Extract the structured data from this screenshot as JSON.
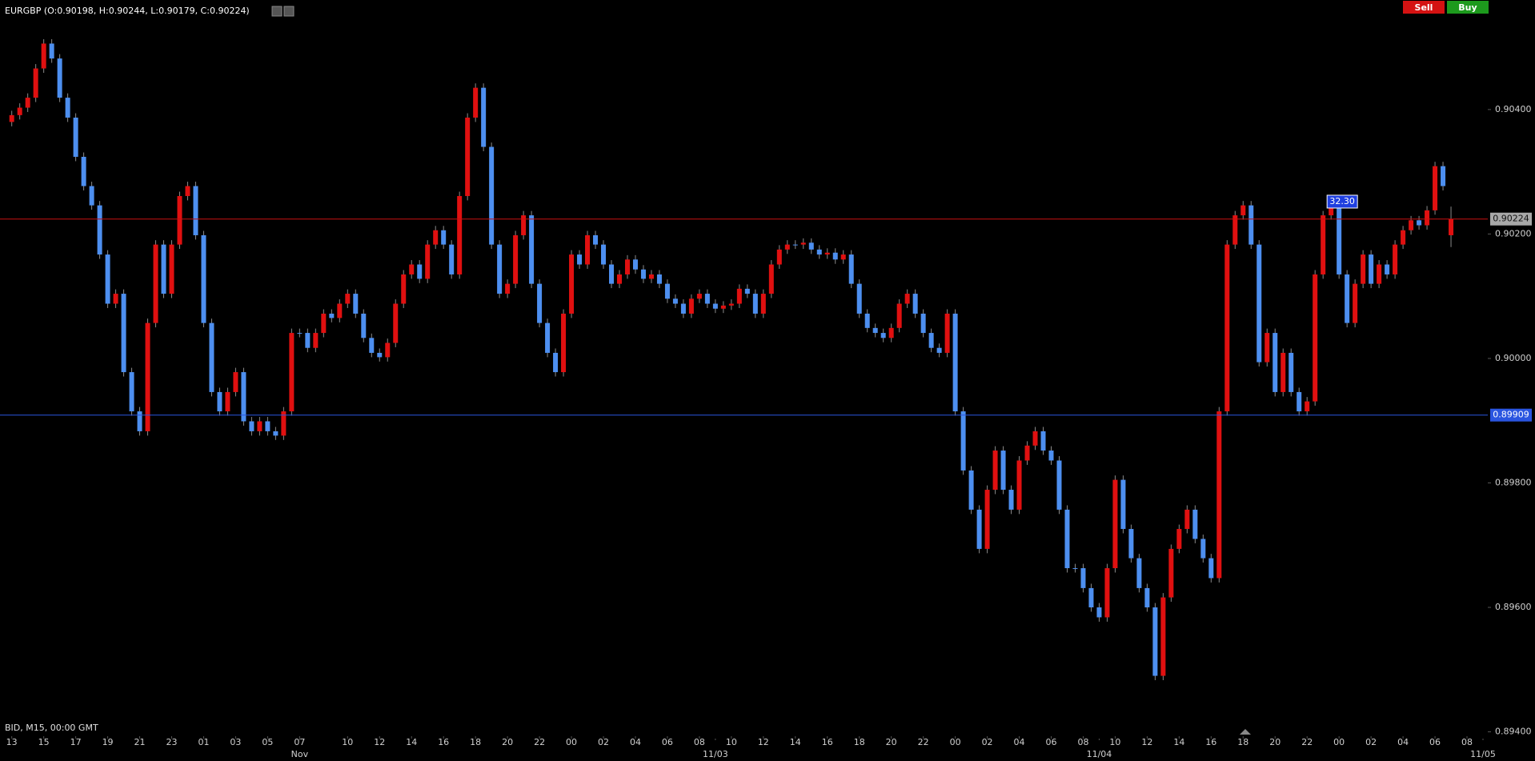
{
  "chart_data": {
    "type": "candlestick",
    "title": "EURGBP (O:0.90198, H:0.90244, L:0.90179, C:0.90224)",
    "subtitle": "BID, M15, 00:00 GMT",
    "buttons": [
      "Sell",
      "Buy"
    ],
    "up_color": "#e01010",
    "down_color": "#4d8ff0",
    "wick_color": "#8a8a8a",
    "xlim": [
      -1.47,
      184.6
    ],
    "ylim": [
      0.89393,
      0.90576
    ],
    "yticks": [
      {
        "value": 0.904,
        "label": "0.90400"
      },
      {
        "value": 0.902,
        "label": "0.90200"
      },
      {
        "value": 0.9,
        "label": "0.90000"
      },
      {
        "value": 0.898,
        "label": "0.89800"
      },
      {
        "value": 0.896,
        "label": "0.89600"
      },
      {
        "value": 0.894,
        "label": "0.89400"
      }
    ],
    "xticks": [
      {
        "value": 0,
        "label": "13"
      },
      {
        "value": 4,
        "label": "15"
      },
      {
        "value": 8,
        "label": "17"
      },
      {
        "value": 12,
        "label": "19"
      },
      {
        "value": 16,
        "label": "21"
      },
      {
        "value": 20,
        "label": "23"
      },
      {
        "value": 24,
        "label": "01"
      },
      {
        "value": 28,
        "label": "03"
      },
      {
        "value": 32,
        "label": "05"
      },
      {
        "value": 36,
        "label": "07"
      },
      {
        "value": 42,
        "label": "10"
      },
      {
        "value": 46,
        "label": "12"
      },
      {
        "value": 50,
        "label": "14"
      },
      {
        "value": 54,
        "label": "16"
      },
      {
        "value": 58,
        "label": "18"
      },
      {
        "value": 62,
        "label": "20"
      },
      {
        "value": 66,
        "label": "22"
      },
      {
        "value": 70,
        "label": "00"
      },
      {
        "value": 74,
        "label": "02"
      },
      {
        "value": 78,
        "label": "04"
      },
      {
        "value": 82,
        "label": "06"
      },
      {
        "value": 86,
        "label": "08"
      },
      {
        "value": 90,
        "label": "10"
      },
      {
        "value": 94,
        "label": "12"
      },
      {
        "value": 98,
        "label": "14"
      },
      {
        "value": 102,
        "label": "16"
      },
      {
        "value": 106,
        "label": "18"
      },
      {
        "value": 110,
        "label": "20"
      },
      {
        "value": 114,
        "label": "22"
      },
      {
        "value": 118,
        "label": "00"
      },
      {
        "value": 122,
        "label": "02"
      },
      {
        "value": 126,
        "label": "04"
      },
      {
        "value": 130,
        "label": "06"
      },
      {
        "value": 134,
        "label": "08"
      },
      {
        "value": 138,
        "label": "10"
      },
      {
        "value": 142,
        "label": "12"
      },
      {
        "value": 146,
        "label": "14"
      },
      {
        "value": 150,
        "label": "16"
      },
      {
        "value": 154,
        "label": "18"
      },
      {
        "value": 158,
        "label": "20"
      },
      {
        "value": 162,
        "label": "22"
      },
      {
        "value": 166,
        "label": "00"
      },
      {
        "value": 170,
        "label": "02"
      },
      {
        "value": 174,
        "label": "04"
      },
      {
        "value": 178,
        "label": "06"
      },
      {
        "value": 182,
        "label": "08"
      }
    ],
    "xdates": [
      {
        "value": 36,
        "label": "Nov"
      },
      {
        "value": 88,
        "label": "11/03"
      },
      {
        "value": 136,
        "label": "11/04"
      },
      {
        "value": 184,
        "label": "11/05"
      }
    ],
    "open": [
      0.9038,
      0.90391,
      0.90403,
      0.90419,
      0.90466,
      0.90506,
      0.90482,
      0.90419,
      0.90387,
      0.90324,
      0.90277,
      0.90246,
      0.90167,
      0.90088,
      0.90104,
      0.89978,
      0.89915,
      0.89883,
      0.90057,
      0.90183,
      0.90104,
      0.90183,
      0.90261,
      0.90277,
      0.90198,
      0.90057,
      0.89946,
      0.89915,
      0.89946,
      0.89978,
      0.89899,
      0.89883,
      0.89899,
      0.89883,
      0.89876,
      0.89915,
      0.90041,
      0.90041,
      0.90017,
      0.90041,
      0.90072,
      0.90065,
      0.90088,
      0.90104,
      0.90072,
      0.90033,
      0.90009,
      0.90002,
      0.90025,
      0.90088,
      0.90135,
      0.90151,
      0.90128,
      0.90183,
      0.90206,
      0.90183,
      0.90135,
      0.90261,
      0.90387,
      0.90435,
      0.9034,
      0.90183,
      0.90104,
      0.9012,
      0.90198,
      0.9023,
      0.9012,
      0.90057,
      0.90009,
      0.89978,
      0.90072,
      0.90167,
      0.90151,
      0.90198,
      0.90183,
      0.90151,
      0.9012,
      0.90135,
      0.90159,
      0.90143,
      0.90128,
      0.90135,
      0.9012,
      0.90096,
      0.90088,
      0.90072,
      0.90096,
      0.90104,
      0.90088,
      0.9008,
      0.90085,
      0.90088,
      0.90112,
      0.90104,
      0.90072,
      0.90104,
      0.90151,
      0.90175,
      0.90183,
      0.90183,
      0.90186,
      0.90175,
      0.90167,
      0.9017,
      0.90159,
      0.90167,
      0.9012,
      0.90072,
      0.90049,
      0.90041,
      0.90033,
      0.90049,
      0.90088,
      0.90104,
      0.90072,
      0.90041,
      0.90017,
      0.90009,
      0.90072,
      0.89915,
      0.8982,
      0.89757,
      0.89694,
      0.89789,
      0.89852,
      0.89789,
      0.89757,
      0.89836,
      0.8986,
      0.89883,
      0.89852,
      0.89836,
      0.89757,
      0.89663,
      0.89663,
      0.89631,
      0.896,
      0.89584,
      0.89663,
      0.89805,
      0.89726,
      0.89679,
      0.89631,
      0.896,
      0.8949,
      0.89616,
      0.89694,
      0.89726,
      0.89757,
      0.8971,
      0.89679,
      0.89647,
      0.89915,
      0.90183,
      0.9023,
      0.90246,
      0.90183,
      0.89994,
      0.90041,
      0.89946,
      0.90009,
      0.89946,
      0.89915,
      0.89931,
      0.90135,
      0.9023,
      0.90246,
      0.90135,
      0.90057,
      0.9012,
      0.90167,
      0.9012,
      0.90151,
      0.90135,
      0.90183,
      0.90206,
      0.90222,
      0.90214,
      0.90238,
      0.90309,
      0.90198
    ],
    "high": [
      0.90398,
      0.9041,
      0.90426,
      0.90473,
      0.90513,
      0.90513,
      0.90489,
      0.90426,
      0.90394,
      0.90331,
      0.90284,
      0.90253,
      0.90174,
      0.90111,
      0.90111,
      0.89985,
      0.89922,
      0.90064,
      0.9019,
      0.9019,
      0.9019,
      0.90268,
      0.90284,
      0.90284,
      0.90205,
      0.90064,
      0.89953,
      0.89953,
      0.89985,
      0.89985,
      0.89906,
      0.89906,
      0.89906,
      0.8989,
      0.89922,
      0.90048,
      0.90048,
      0.90048,
      0.90048,
      0.90079,
      0.90079,
      0.90095,
      0.90111,
      0.90111,
      0.90079,
      0.9004,
      0.90016,
      0.90032,
      0.90095,
      0.90142,
      0.90158,
      0.90158,
      0.9019,
      0.90213,
      0.90213,
      0.9019,
      0.90268,
      0.90394,
      0.90442,
      0.90442,
      0.90347,
      0.9019,
      0.90127,
      0.90205,
      0.90237,
      0.90237,
      0.90127,
      0.90064,
      0.90016,
      0.90079,
      0.90174,
      0.90174,
      0.90205,
      0.90205,
      0.9019,
      0.90158,
      0.90142,
      0.90166,
      0.90166,
      0.9015,
      0.90142,
      0.90142,
      0.90127,
      0.90103,
      0.90095,
      0.90103,
      0.90111,
      0.90111,
      0.90095,
      0.90092,
      0.90095,
      0.90119,
      0.90119,
      0.90111,
      0.90111,
      0.90158,
      0.90182,
      0.9019,
      0.9019,
      0.90193,
      0.90193,
      0.90182,
      0.90177,
      0.90177,
      0.90174,
      0.90174,
      0.90127,
      0.90079,
      0.90056,
      0.90048,
      0.90056,
      0.90095,
      0.90111,
      0.90111,
      0.90079,
      0.90048,
      0.90024,
      0.90079,
      0.90079,
      0.89922,
      0.89827,
      0.89764,
      0.89796,
      0.89859,
      0.89859,
      0.89796,
      0.89843,
      0.89867,
      0.8989,
      0.8989,
      0.89859,
      0.89843,
      0.89764,
      0.8967,
      0.8967,
      0.89638,
      0.89607,
      0.8967,
      0.89812,
      0.89812,
      0.89733,
      0.89686,
      0.89638,
      0.89607,
      0.89623,
      0.89701,
      0.89733,
      0.89764,
      0.89764,
      0.89717,
      0.89686,
      0.89922,
      0.9019,
      0.90237,
      0.90253,
      0.90253,
      0.9019,
      0.90048,
      0.90048,
      0.90016,
      0.90016,
      0.89953,
      0.89938,
      0.90142,
      0.90237,
      0.90253,
      0.90253,
      0.90142,
      0.90127,
      0.90174,
      0.90174,
      0.90158,
      0.90158,
      0.9019,
      0.90213,
      0.90229,
      0.90229,
      0.90245,
      0.90316,
      0.90316,
      0.90244
    ],
    "low": [
      0.90373,
      0.90384,
      0.90396,
      0.90412,
      0.90459,
      0.90475,
      0.90412,
      0.9038,
      0.90317,
      0.9027,
      0.90239,
      0.9016,
      0.90081,
      0.90081,
      0.89971,
      0.89908,
      0.89876,
      0.89876,
      0.9005,
      0.90097,
      0.90097,
      0.90176,
      0.90254,
      0.90191,
      0.9005,
      0.89939,
      0.89908,
      0.89908,
      0.89939,
      0.89892,
      0.89876,
      0.89876,
      0.89876,
      0.89869,
      0.89869,
      0.89908,
      0.90034,
      0.9001,
      0.9001,
      0.90034,
      0.90058,
      0.90058,
      0.90081,
      0.90065,
      0.90026,
      0.90002,
      0.89995,
      0.89995,
      0.90018,
      0.90081,
      0.90128,
      0.90121,
      0.90121,
      0.90176,
      0.90176,
      0.90128,
      0.90128,
      0.90254,
      0.9038,
      0.90333,
      0.90176,
      0.90097,
      0.90097,
      0.90113,
      0.90191,
      0.90113,
      0.9005,
      0.90002,
      0.89971,
      0.89971,
      0.90065,
      0.90144,
      0.90144,
      0.90176,
      0.90144,
      0.90113,
      0.90113,
      0.90128,
      0.90136,
      0.90121,
      0.90121,
      0.90113,
      0.90089,
      0.90081,
      0.90065,
      0.90065,
      0.90089,
      0.90081,
      0.90073,
      0.90073,
      0.90078,
      0.90081,
      0.90097,
      0.90065,
      0.90065,
      0.90097,
      0.90144,
      0.90168,
      0.90176,
      0.90176,
      0.90168,
      0.9016,
      0.9016,
      0.90152,
      0.90152,
      0.90113,
      0.90065,
      0.90042,
      0.90034,
      0.90026,
      0.90026,
      0.90042,
      0.90081,
      0.90065,
      0.90034,
      0.9001,
      0.90002,
      0.90002,
      0.89908,
      0.89813,
      0.8975,
      0.89687,
      0.89687,
      0.89782,
      0.89782,
      0.8975,
      0.8975,
      0.89829,
      0.89853,
      0.89845,
      0.89829,
      0.8975,
      0.89656,
      0.89656,
      0.89624,
      0.89593,
      0.89577,
      0.89577,
      0.89656,
      0.89719,
      0.89672,
      0.89624,
      0.89593,
      0.89483,
      0.89483,
      0.89609,
      0.89687,
      0.89719,
      0.89703,
      0.89672,
      0.8964,
      0.8964,
      0.89908,
      0.90176,
      0.90223,
      0.90176,
      0.89987,
      0.89987,
      0.89939,
      0.89939,
      0.89939,
      0.89908,
      0.89908,
      0.89924,
      0.90128,
      0.90223,
      0.90128,
      0.9005,
      0.9005,
      0.90113,
      0.90113,
      0.90113,
      0.90128,
      0.90128,
      0.90176,
      0.90199,
      0.90207,
      0.90207,
      0.90231,
      0.9027,
      0.90179
    ],
    "close": [
      0.90391,
      0.90403,
      0.90419,
      0.90466,
      0.90506,
      0.90482,
      0.90419,
      0.90387,
      0.90324,
      0.90277,
      0.90246,
      0.90167,
      0.90088,
      0.90104,
      0.89978,
      0.89915,
      0.89883,
      0.90057,
      0.90183,
      0.90104,
      0.90183,
      0.90261,
      0.90277,
      0.90198,
      0.90057,
      0.89946,
      0.89915,
      0.89946,
      0.89978,
      0.89899,
      0.89883,
      0.89899,
      0.89883,
      0.89876,
      0.89915,
      0.90041,
      0.90041,
      0.90017,
      0.90041,
      0.90072,
      0.90065,
      0.90088,
      0.90104,
      0.90072,
      0.90033,
      0.90009,
      0.90002,
      0.90025,
      0.90088,
      0.90135,
      0.90151,
      0.90128,
      0.90183,
      0.90206,
      0.90183,
      0.90135,
      0.90261,
      0.90387,
      0.90435,
      0.9034,
      0.90183,
      0.90104,
      0.9012,
      0.90198,
      0.9023,
      0.9012,
      0.90057,
      0.90009,
      0.89978,
      0.90072,
      0.90167,
      0.90151,
      0.90198,
      0.90183,
      0.90151,
      0.9012,
      0.90135,
      0.90159,
      0.90143,
      0.90128,
      0.90135,
      0.9012,
      0.90096,
      0.90088,
      0.90072,
      0.90096,
      0.90104,
      0.90088,
      0.9008,
      0.90085,
      0.90088,
      0.90112,
      0.90104,
      0.90072,
      0.90104,
      0.90151,
      0.90175,
      0.90183,
      0.90183,
      0.90186,
      0.90175,
      0.90167,
      0.9017,
      0.90159,
      0.90167,
      0.9012,
      0.90072,
      0.90049,
      0.90041,
      0.90033,
      0.90049,
      0.90088,
      0.90104,
      0.90072,
      0.90041,
      0.90017,
      0.90009,
      0.90072,
      0.89915,
      0.8982,
      0.89757,
      0.89694,
      0.89789,
      0.89852,
      0.89789,
      0.89757,
      0.89836,
      0.8986,
      0.89883,
      0.89852,
      0.89836,
      0.89757,
      0.89663,
      0.89663,
      0.89631,
      0.896,
      0.89584,
      0.89663,
      0.89805,
      0.89726,
      0.89679,
      0.89631,
      0.896,
      0.8949,
      0.89616,
      0.89694,
      0.89726,
      0.89757,
      0.8971,
      0.89679,
      0.89647,
      0.89915,
      0.90183,
      0.9023,
      0.90246,
      0.90183,
      0.89994,
      0.90041,
      0.89946,
      0.90009,
      0.89946,
      0.89915,
      0.89931,
      0.90135,
      0.9023,
      0.90246,
      0.90135,
      0.90057,
      0.9012,
      0.90167,
      0.9012,
      0.90151,
      0.90135,
      0.90183,
      0.90206,
      0.90222,
      0.90214,
      0.90238,
      0.90309,
      0.90277,
      0.90224
    ],
    "price_lines": {
      "values": [
        0.90224,
        0.89909
      ],
      "value_labels": [
        "0.90224",
        "0.89909"
      ],
      "colors": [
        "#c81010",
        "#2a55e0"
      ]
    },
    "annotations": [
      {
        "label": "32.30",
        "x": 164.5,
        "y": 0.90252
      }
    ]
  }
}
